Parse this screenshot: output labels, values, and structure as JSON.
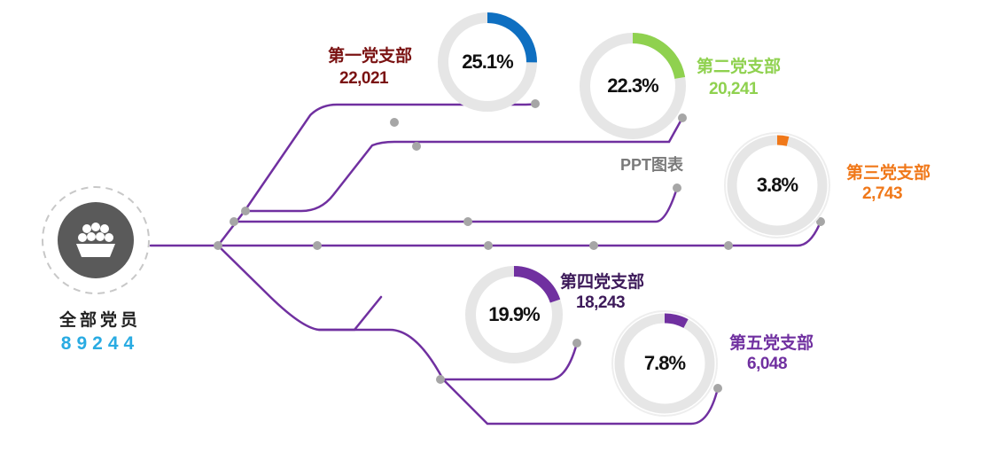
{
  "chart_data": {
    "type": "donut",
    "title": "",
    "total": {
      "label": "全部党员",
      "value": "89244"
    },
    "watermark": "PPT图表",
    "series": [
      {
        "name": "第一党支部",
        "count": "22,021",
        "percent": 25.1,
        "percent_label": "25.1%",
        "color": "#0e6fc1",
        "name_color": "#7a1212"
      },
      {
        "name": "第二党支部",
        "count": "20,241",
        "percent": 22.3,
        "percent_label": "22.3%",
        "color": "#8fd14f",
        "name_color": "#8fd14f"
      },
      {
        "name": "第三党支部",
        "count": "2,743",
        "percent": 3.8,
        "percent_label": "3.8%",
        "color": "#f07819",
        "name_color": "#f07819"
      },
      {
        "name": "第四党支部",
        "count": "18,243",
        "percent": 19.9,
        "percent_label": "19.9%",
        "color": "#7030a0",
        "name_color": "#3d1a5a"
      },
      {
        "name": "第五党支部",
        "count": "6,048",
        "percent": 7.8,
        "percent_label": "7.8%",
        "color": "#7030a0",
        "name_color": "#7030a0"
      }
    ]
  },
  "colors": {
    "line": "#7030a0",
    "ring_bg": "#e6e6e6",
    "dot": "#a6a6a6",
    "hub": "#5a5a5a"
  },
  "icon": "people-group-icon"
}
